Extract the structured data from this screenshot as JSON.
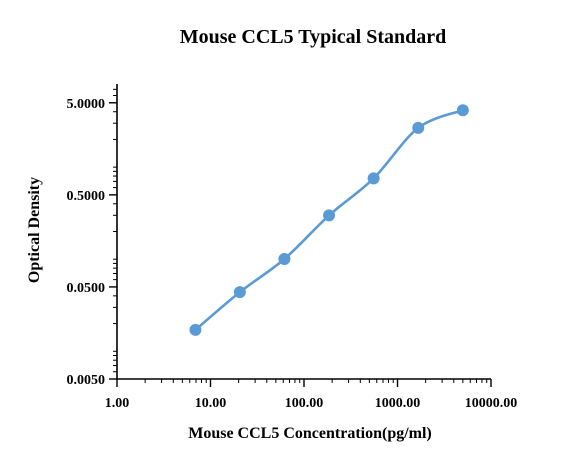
{
  "chart_data": {
    "type": "scatter",
    "title": "Mouse CCL5 Typical Standard",
    "xlabel": "Mouse CCL5 Concentration(pg/ml)",
    "ylabel": "Optical Density",
    "xscale": "log",
    "yscale": "log",
    "xlim": [
      1,
      10000
    ],
    "ylim": [
      0.005,
      8
    ],
    "x_ticks": [
      1,
      10,
      100,
      1000,
      10000
    ],
    "x_tick_labels": [
      "1.00",
      "10.00",
      "100.00",
      "1000.00",
      "10000.00"
    ],
    "y_ticks": [
      0.005,
      0.05,
      0.5,
      5
    ],
    "y_tick_labels": [
      "0.0050",
      "0.0500",
      "0.5000",
      "5.0000"
    ],
    "grid": false,
    "legend": "none",
    "series": [
      {
        "x": [
          6.9,
          20.6,
          61.7,
          185.2,
          555.6,
          1666.7,
          5000
        ],
        "y": [
          0.0171,
          0.0439,
          0.1005,
          0.299,
          0.756,
          2.67,
          4.15
        ]
      }
    ],
    "colors": {
      "series": "#5b9bd5",
      "axis": "#000000"
    }
  }
}
